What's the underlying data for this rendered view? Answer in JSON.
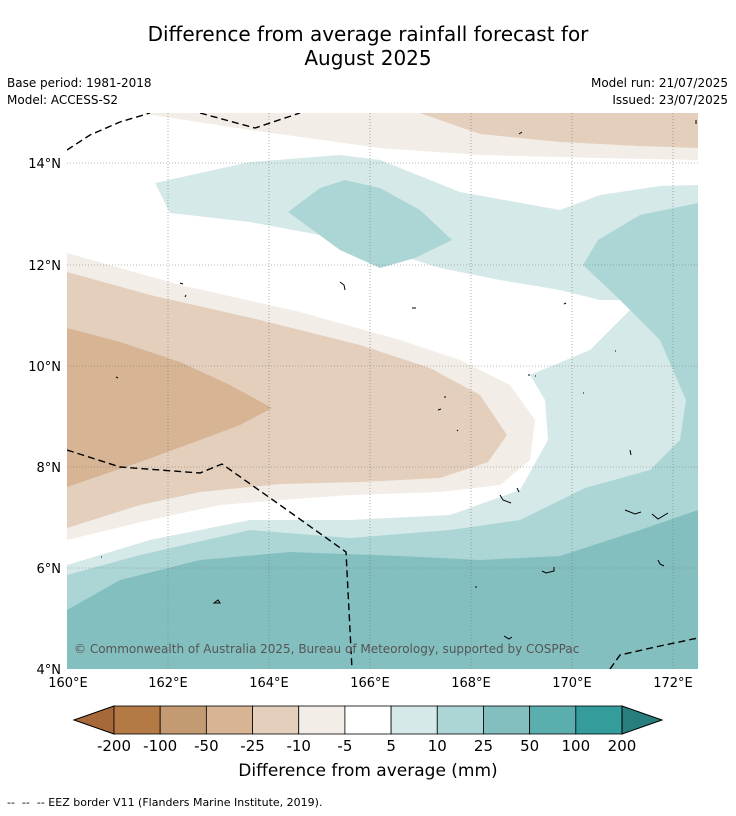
{
  "header": {
    "title_line1": "Difference from average rainfall forecast for",
    "title_line2": "August 2025",
    "base_period": "Base period: 1981-2018",
    "model": "Model: ACCESS-S2",
    "model_run": "Model run: 21/07/2025",
    "issued": "Issued: 23/07/2025"
  },
  "map": {
    "lat_labels": [
      "14°N",
      "12°N",
      "10°N",
      "8°N",
      "6°N",
      "4°N"
    ],
    "lon_labels": [
      "160°E",
      "162°E",
      "164°E",
      "166°E",
      "168°E",
      "170°E",
      "172°E"
    ],
    "copyright": "© Commonwealth of Australia 2025, Bureau of Meteorology, supported by COSPPac"
  },
  "colorbar": {
    "title": "Difference from average (mm)",
    "tick_labels": [
      "-200",
      "-100",
      "-50",
      "-25",
      "-10",
      "-5",
      "5",
      "10",
      "25",
      "50",
      "100",
      "200"
    ],
    "colors": [
      "#a8693a",
      "#b47a45",
      "#c49a72",
      "#d6b494",
      "#e3cfbc",
      "#f2ede6",
      "#ffffff",
      "#d5e9e8",
      "#acd6d5",
      "#84bfbf",
      "#5aaeae",
      "#349d9c",
      "#287d7d"
    ]
  },
  "footer": {
    "legend_text": "--  --  -- EEZ border V11 (Flanders Marine Institute, 2019)."
  }
}
